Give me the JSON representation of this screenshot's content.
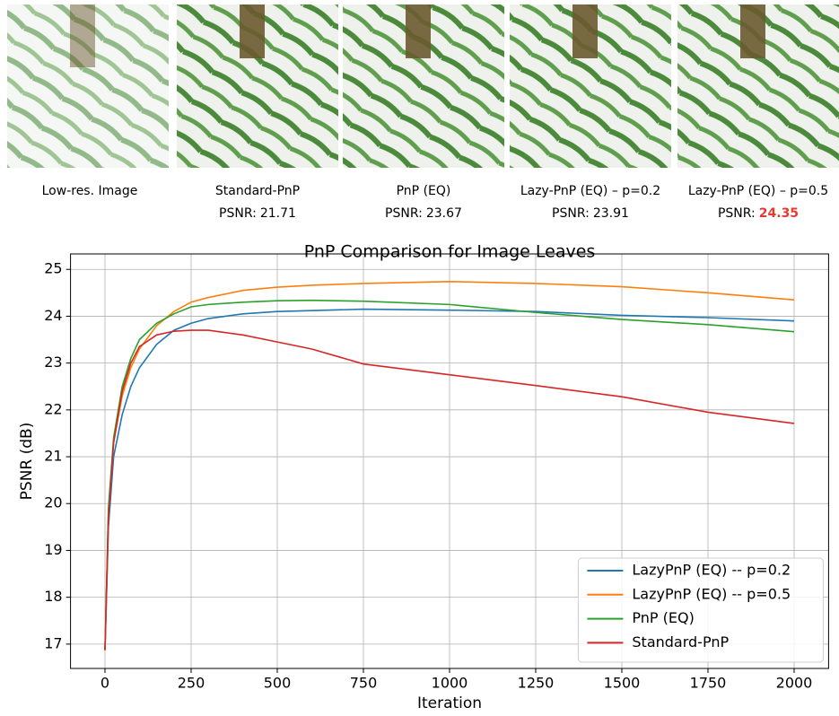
{
  "images": [
    {
      "caption": "Low-res. Image"
    },
    {
      "caption": "Standard-PnP",
      "psnr_prefix": "PSNR:",
      "psnr": "21.71"
    },
    {
      "caption": "PnP (EQ)",
      "psnr_prefix": "PSNR:",
      "psnr": "23.67"
    },
    {
      "caption": "Lazy-PnP (EQ) – p=0.2",
      "psnr_prefix": "PSNR:",
      "psnr": "23.91"
    },
    {
      "caption": "Lazy-PnP (EQ) – p=0.5",
      "psnr_prefix": "PSNR:",
      "psnr": "24.35",
      "highlight": true
    }
  ],
  "chart_data": {
    "type": "line",
    "title": "PnP Comparison for Image Leaves",
    "x_label": "Iteration",
    "y_label": "PSNR (dB)",
    "x": [
      0,
      10,
      25,
      50,
      75,
      100,
      150,
      200,
      250,
      300,
      400,
      500,
      600,
      750,
      1000,
      1250,
      1500,
      1750,
      2000
    ],
    "series": [
      {
        "name": "LazyPnP (EQ) -- p=0.2",
        "color": "#1f77b4",
        "values": [
          16.87,
          19.5,
          21.0,
          21.9,
          22.5,
          22.9,
          23.4,
          23.7,
          23.85,
          23.95,
          24.05,
          24.1,
          24.12,
          24.15,
          24.13,
          24.1,
          24.02,
          23.97,
          23.9
        ]
      },
      {
        "name": "LazyPnP (EQ) -- p=0.5",
        "color": "#ff7f0e",
        "values": [
          16.87,
          19.8,
          21.3,
          22.3,
          22.9,
          23.3,
          23.8,
          24.1,
          24.3,
          24.4,
          24.55,
          24.62,
          24.66,
          24.7,
          24.74,
          24.7,
          24.63,
          24.5,
          24.35
        ]
      },
      {
        "name": "PnP (EQ)",
        "color": "#2ca02c",
        "values": [
          16.87,
          19.9,
          21.4,
          22.5,
          23.1,
          23.5,
          23.85,
          24.05,
          24.2,
          24.25,
          24.3,
          24.33,
          24.34,
          24.32,
          24.25,
          24.08,
          23.93,
          23.82,
          23.67
        ]
      },
      {
        "name": "Standard-PnP",
        "color": "#d62728",
        "values": [
          16.87,
          19.7,
          21.3,
          22.4,
          23.0,
          23.35,
          23.6,
          23.68,
          23.7,
          23.7,
          23.6,
          23.45,
          23.3,
          22.98,
          22.75,
          22.52,
          22.28,
          21.95,
          21.71
        ]
      }
    ],
    "xlim": [
      -100,
      2100
    ],
    "ylim": [
      16.48,
      25.33
    ],
    "xticks": [
      0,
      250,
      500,
      750,
      1000,
      1250,
      1500,
      1750,
      2000
    ],
    "yticks": [
      17,
      18,
      19,
      20,
      21,
      22,
      23,
      24,
      25
    ],
    "grid": true,
    "legend": "lower right"
  }
}
